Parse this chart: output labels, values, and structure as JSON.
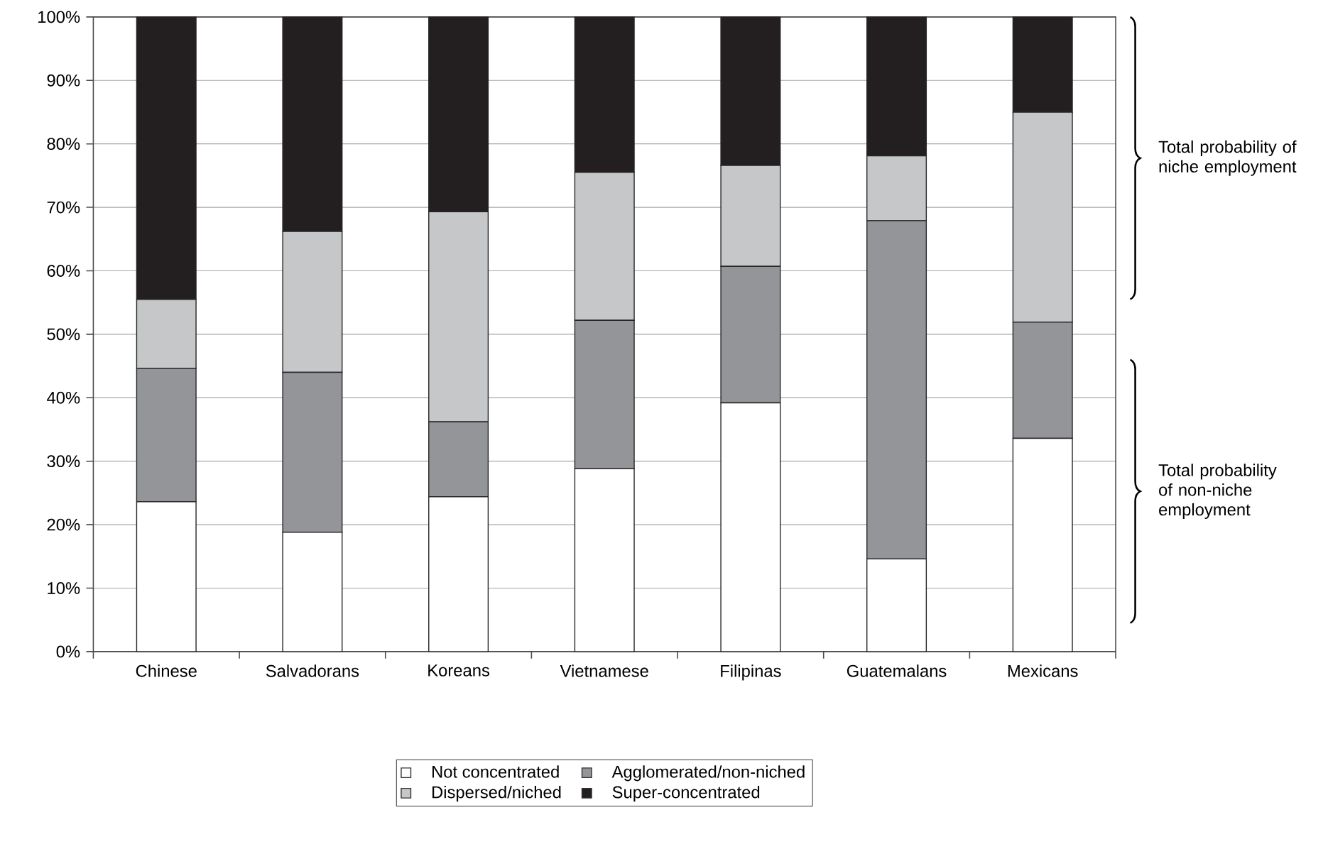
{
  "chart_data": {
    "type": "bar",
    "stacked": true,
    "categories": [
      "Chinese",
      "Salvadorans",
      "Koreans",
      "Vietnamese",
      "Filipinas",
      "Guatemalans",
      "Mexicans"
    ],
    "series": [
      {
        "name": "Not concentrated",
        "color": "#ffffff",
        "values": [
          23.6,
          18.8,
          24.4,
          28.8,
          39.2,
          14.6,
          33.6
        ]
      },
      {
        "name": "Agglomerated/non-niched",
        "color": "#939598",
        "values": [
          21.0,
          25.2,
          11.8,
          23.4,
          21.5,
          53.3,
          18.3
        ]
      },
      {
        "name": "Dispersed/niched",
        "color": "#c6c7c9",
        "values": [
          10.9,
          22.2,
          33.1,
          23.3,
          15.9,
          10.2,
          33.1
        ]
      },
      {
        "name": "Super-concentrated",
        "color": "#231f20",
        "values": [
          44.5,
          33.8,
          30.7,
          24.5,
          23.4,
          21.9,
          15.0
        ]
      }
    ],
    "ylim": [
      0,
      100
    ],
    "yticks": [
      {
        "value": 0,
        "label": "0%"
      },
      {
        "value": 10,
        "label": "10%"
      },
      {
        "value": 20,
        "label": "20%"
      },
      {
        "value": 30,
        "label": "30%"
      },
      {
        "value": 40,
        "label": "40%"
      },
      {
        "value": 50,
        "label": "50%"
      },
      {
        "value": 60,
        "label": "60%"
      },
      {
        "value": 70,
        "label": "70%"
      },
      {
        "value": 80,
        "label": "80%"
      },
      {
        "value": 90,
        "label": "90%"
      },
      {
        "value": 100,
        "label": "100%"
      }
    ],
    "grid": "y",
    "legend": "bottom",
    "annotations": [
      "Total probability of niche employment",
      "Total probability of non-niche employment"
    ]
  }
}
